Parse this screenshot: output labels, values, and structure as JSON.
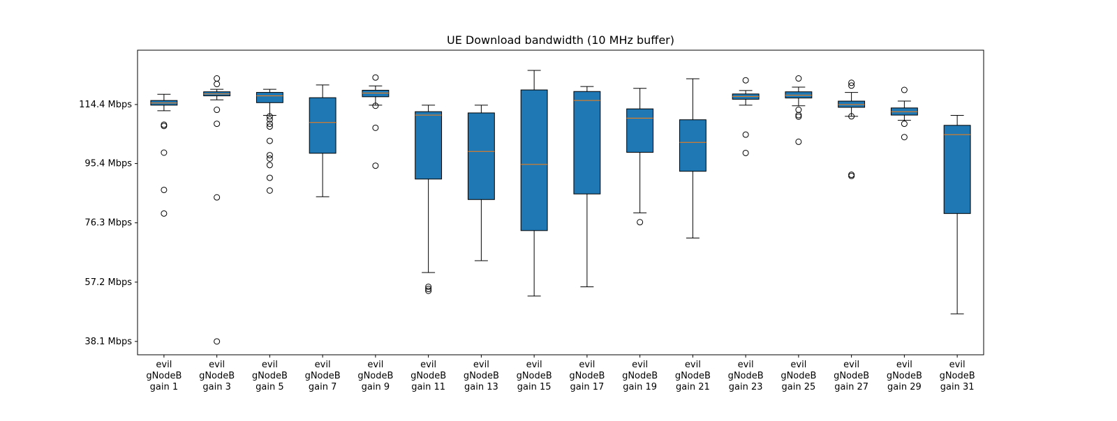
{
  "chart_data": {
    "type": "boxplot",
    "title": "UE Download bandwidth (10 MHz buffer)",
    "xlabel": "",
    "ylabel": "",
    "ylim": [
      33.8,
      131.9
    ],
    "yticks": [
      38.1,
      57.2,
      76.3,
      95.4,
      114.4
    ],
    "ytick_labels": [
      "38.1 Mbps",
      "57.2 Mbps",
      "76.3 Mbps",
      "95.4 Mbps",
      "114.4 Mbps"
    ],
    "box_color": "#1f77b4",
    "median_color": "#ff7f0e",
    "grid": false,
    "categories": [
      [
        "evil",
        "gNodeB",
        "gain 1"
      ],
      [
        "evil",
        "gNodeB",
        "gain 3"
      ],
      [
        "evil",
        "gNodeB",
        "gain 5"
      ],
      [
        "evil",
        "gNodeB",
        "gain 7"
      ],
      [
        "evil",
        "gNodeB",
        "gain 9"
      ],
      [
        "evil",
        "gNodeB",
        "gain 11"
      ],
      [
        "evil",
        "gNodeB",
        "gain 13"
      ],
      [
        "evil",
        "gNodeB",
        "gain 15"
      ],
      [
        "evil",
        "gNodeB",
        "gain 17"
      ],
      [
        "evil",
        "gNodeB",
        "gain 19"
      ],
      [
        "evil",
        "gNodeB",
        "gain 21"
      ],
      [
        "evil",
        "gNodeB",
        "gain 23"
      ],
      [
        "evil",
        "gNodeB",
        "gain 25"
      ],
      [
        "evil",
        "gNodeB",
        "gain 27"
      ],
      [
        "evil",
        "gNodeB",
        "gain 29"
      ],
      [
        "evil",
        "gNodeB",
        "gain 31"
      ]
    ],
    "boxes": [
      {
        "whislo": 112.4,
        "q1": 114.2,
        "med": 114.9,
        "q3": 115.7,
        "whishi": 117.7,
        "fliers": [
          107.9,
          107.5,
          98.9,
          86.9,
          79.3
        ]
      },
      {
        "whislo": 115.9,
        "q1": 117.2,
        "med": 117.8,
        "q3": 118.5,
        "whishi": 119.3,
        "fliers": [
          122.8,
          121.0,
          112.7,
          108.2,
          84.5,
          38.1
        ]
      },
      {
        "whislo": 110.9,
        "q1": 115.0,
        "med": 117.2,
        "q3": 118.3,
        "whishi": 119.3,
        "fliers": [
          110.6,
          109.6,
          108.2,
          107.3,
          102.7,
          98.1,
          97.0,
          94.9,
          90.8,
          86.7
        ]
      },
      {
        "whislo": 84.7,
        "q1": 98.7,
        "med": 108.6,
        "q3": 116.6,
        "whishi": 120.7,
        "fliers": []
      },
      {
        "whislo": 114.2,
        "q1": 116.9,
        "med": 118.1,
        "q3": 119.0,
        "whishi": 120.4,
        "fliers": [
          123.1,
          114.0,
          106.9,
          94.7
        ]
      },
      {
        "whislo": 60.3,
        "q1": 90.4,
        "med": 111.0,
        "q3": 112.1,
        "whishi": 114.2,
        "fliers": [
          55.7,
          55.0,
          54.4
        ]
      },
      {
        "whislo": 64.1,
        "q1": 83.8,
        "med": 99.3,
        "q3": 111.7,
        "whishi": 114.2,
        "fliers": []
      },
      {
        "whislo": 52.7,
        "q1": 73.8,
        "med": 95.1,
        "q3": 119.1,
        "whishi": 125.4,
        "fliers": []
      },
      {
        "whislo": 55.7,
        "q1": 85.6,
        "med": 115.7,
        "q3": 118.6,
        "whishi": 120.2,
        "fliers": []
      },
      {
        "whislo": 79.5,
        "q1": 99.0,
        "med": 110.0,
        "q3": 113.0,
        "whishi": 119.6,
        "fliers": [
          76.5
        ]
      },
      {
        "whislo": 71.4,
        "q1": 92.9,
        "med": 102.2,
        "q3": 109.5,
        "whishi": 122.7,
        "fliers": []
      },
      {
        "whislo": 114.2,
        "q1": 116.1,
        "med": 117.0,
        "q3": 117.8,
        "whishi": 118.9,
        "fliers": [
          122.2,
          104.7,
          98.8
        ]
      },
      {
        "whislo": 114.0,
        "q1": 116.5,
        "med": 117.4,
        "q3": 118.5,
        "whishi": 120.0,
        "fliers": [
          122.8,
          112.7,
          111.0,
          110.5,
          102.4
        ]
      },
      {
        "whislo": 110.6,
        "q1": 113.5,
        "med": 114.4,
        "q3": 115.5,
        "whishi": 118.3,
        "fliers": [
          121.4,
          120.5,
          110.6,
          91.8,
          91.4
        ]
      },
      {
        "whislo": 109.3,
        "q1": 111.0,
        "med": 112.1,
        "q3": 113.3,
        "whishi": 115.5,
        "fliers": [
          119.1,
          108.2,
          103.9
        ]
      },
      {
        "whislo": 47.0,
        "q1": 79.3,
        "med": 104.7,
        "q3": 107.7,
        "whishi": 110.9,
        "fliers": []
      }
    ]
  }
}
